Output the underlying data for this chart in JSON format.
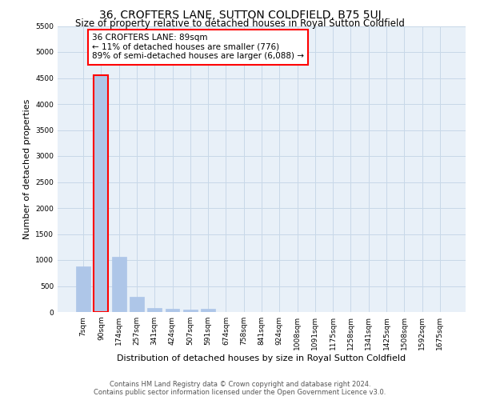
{
  "title": "36, CROFTERS LANE, SUTTON COLDFIELD, B75 5UJ",
  "subtitle": "Size of property relative to detached houses in Royal Sutton Coldfield",
  "xlabel": "Distribution of detached houses by size in Royal Sutton Coldfield",
  "ylabel": "Number of detached properties",
  "categories": [
    "7sqm",
    "90sqm",
    "174sqm",
    "257sqm",
    "341sqm",
    "424sqm",
    "507sqm",
    "591sqm",
    "674sqm",
    "758sqm",
    "841sqm",
    "924sqm",
    "1008sqm",
    "1091sqm",
    "1175sqm",
    "1258sqm",
    "1341sqm",
    "1425sqm",
    "1508sqm",
    "1592sqm",
    "1675sqm"
  ],
  "values": [
    880,
    4550,
    1060,
    300,
    80,
    60,
    50,
    60,
    0,
    0,
    0,
    0,
    0,
    0,
    0,
    0,
    0,
    0,
    0,
    0,
    0
  ],
  "highlight_bar_index": 1,
  "bar_color": "#aec6e8",
  "bar_edge_color": "#aec6e8",
  "highlight_bar_edge_color": "red",
  "annotation_text": "36 CROFTERS LANE: 89sqm\n← 11% of detached houses are smaller (776)\n89% of semi-detached houses are larger (6,088) →",
  "annotation_box_edge_color": "red",
  "annotation_box_face_color": "white",
  "ylim": [
    0,
    5500
  ],
  "yticks": [
    0,
    500,
    1000,
    1500,
    2000,
    2500,
    3000,
    3500,
    4000,
    4500,
    5000,
    5500
  ],
  "grid_color": "#c8d8e8",
  "bg_color": "#e8f0f8",
  "footer_line1": "Contains HM Land Registry data © Crown copyright and database right 2024.",
  "footer_line2": "Contains public sector information licensed under the Open Government Licence v3.0.",
  "title_fontsize": 10,
  "subtitle_fontsize": 8.5,
  "xlabel_fontsize": 8,
  "ylabel_fontsize": 8,
  "tick_fontsize": 6.5,
  "annotation_fontsize": 7.5,
  "footer_fontsize": 6
}
